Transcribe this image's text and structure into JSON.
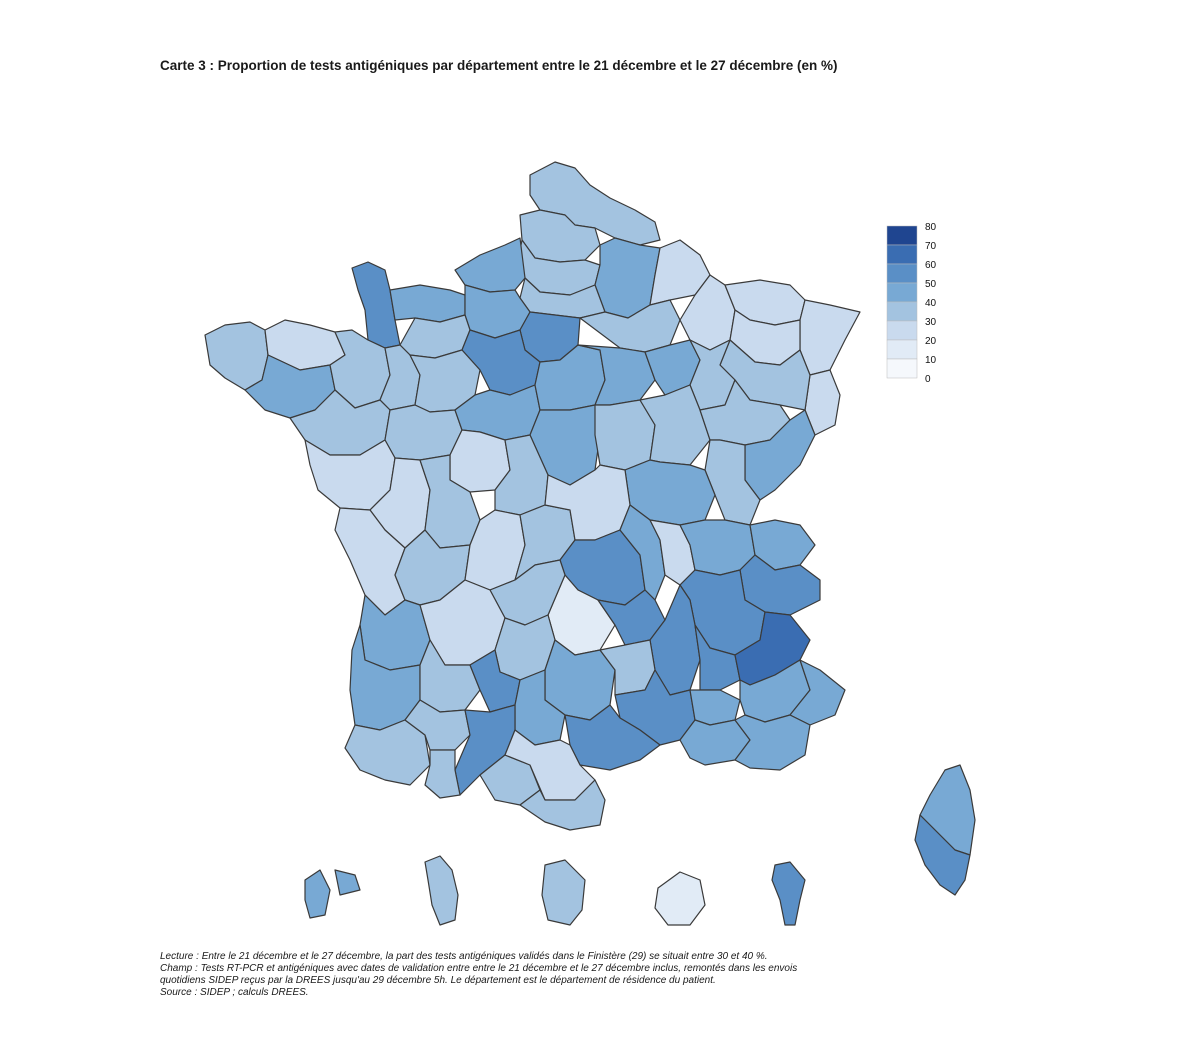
{
  "title": "Carte 3 : Proportion de tests antigéniques par département entre le 21 décembre et le 27 décembre (en %)",
  "legend": {
    "ticks": [
      "80",
      "70",
      "60",
      "50",
      "40",
      "30",
      "20",
      "10",
      "0"
    ],
    "bins": [
      {
        "range": "70-80",
        "color": "#1f4590"
      },
      {
        "range": "60-70",
        "color": "#3a6db2"
      },
      {
        "range": "50-60",
        "color": "#5a8fc6"
      },
      {
        "range": "40-50",
        "color": "#78a9d4"
      },
      {
        "range": "30-40",
        "color": "#a3c3e0"
      },
      {
        "range": "20-30",
        "color": "#c9daee"
      },
      {
        "range": "10-20",
        "color": "#e1ebf6"
      },
      {
        "range": "0-10",
        "color": "#f5f8fc"
      }
    ]
  },
  "regions": {
    "nord": "#a3c3e0",
    "pas_de_calais": "#a3c3e0",
    "somme": "#a3c3e0",
    "aisne": "#78a9d4",
    "ardennes": "#c9daee",
    "seine_maritime": "#78a9d4",
    "oise": "#a3c3e0",
    "manche": "#5a8fc6",
    "calvados": "#78a9d4",
    "eure": "#78a9d4",
    "marne": "#a3c3e0",
    "meuse": "#c9daee",
    "moselle_nord": "#c9daee",
    "bas_rhin": "#c9daee",
    "haut_rhin": "#c9daee",
    "vosges": "#a3c3e0",
    "meurthe": "#c9daee",
    "ile_de_france": "#5a8fc6",
    "eure_et_loir": "#5a8fc6",
    "finistere": "#a3c3e0",
    "cotes_armor": "#c9daee",
    "morbihan": "#78a9d4",
    "ille_vilaine": "#a3c3e0",
    "mayenne": "#a3c3e0",
    "orne": "#a3c3e0",
    "sarthe": "#a3c3e0",
    "loiret": "#78a9d4",
    "yonne": "#78a9d4",
    "aube": "#78a9d4",
    "haute_marne": "#a3c3e0",
    "cote_or": "#a3c3e0",
    "haute_saone": "#a3c3e0",
    "doubs": "#78a9d4",
    "jura": "#a3c3e0",
    "loire_atlantique": "#a3c3e0",
    "maine_loire": "#a3c3e0",
    "indre_loire": "#c9daee",
    "loir_cher": "#78a9d4",
    "cher": "#78a9d4",
    "nievre": "#a3c3e0",
    "saone_loire": "#78a9d4",
    "ain": "#78a9d4",
    "haute_savoie": "#78a9d4",
    "savoie": "#5a8fc6",
    "vendee": "#c9daee",
    "deux_sevres": "#c9daee",
    "vienne": "#a3c3e0",
    "indre": "#a3c3e0",
    "allier": "#c9daee",
    "puy_dome": "#5a8fc6",
    "loire": "#78a9d4",
    "rhone": "#c9daee",
    "isere": "#5a8fc6",
    "charente_mar": "#c9daee",
    "charente": "#a3c3e0",
    "haute_vienne": "#c9daee",
    "creuse": "#a3c3e0",
    "correze": "#a3c3e0",
    "cantal": "#e1ebf6",
    "haute_loire": "#5a8fc6",
    "ardeche": "#5a8fc6",
    "drome": "#5a8fc6",
    "hautes_alpes": "#3a6db2",
    "gironde": "#78a9d4",
    "dordogne": "#c9daee",
    "lot": "#a3c3e0",
    "aveyron": "#78a9d4",
    "lozere": "#a3c3e0",
    "gard": "#5a8fc6",
    "vaucluse": "#78a9d4",
    "alpes_hp": "#78a9d4",
    "alpes_mar": "#78a9d4",
    "landes": "#78a9d4",
    "lot_garonne": "#a3c3e0",
    "tarn_garonne": "#5a8fc6",
    "tarn": "#78a9d4",
    "herault": "#5a8fc6",
    "bouches_rhone": "#78a9d4",
    "var": "#78a9d4",
    "pyr_atl": "#a3c3e0",
    "gers": "#a3c3e0",
    "haute_garonne": "#5a8fc6",
    "ariege": "#a3c3e0",
    "aude": "#c9daee",
    "pyr_or": "#a3c3e0",
    "haute_corse": "#78a9d4",
    "corse_sud": "#5a8fc6",
    "guadeloupe": "#78a9d4",
    "martinique": "#a3c3e0",
    "guyane": "#a3c3e0",
    "reunion": "#e1ebf6",
    "mayotte": "#5a8fc6"
  },
  "notes": {
    "lecture": "Lecture : Entre le 21 décembre et le 27 décembre, la part des tests antigéniques validés dans le Finistère (29) se situait entre 30 et 40 %.",
    "champ_1": "Champ : Tests RT-PCR et antigéniques avec dates de validation entre entre le 21 décembre et le 27 décembre inclus, remontés dans les envois",
    "champ_2": "quotidiens SIDEP reçus par la DREES jusqu'au 29 décembre 5h. Le département est le département de résidence du patient.",
    "source": "Source : SIDEP ; calculs DREES."
  }
}
